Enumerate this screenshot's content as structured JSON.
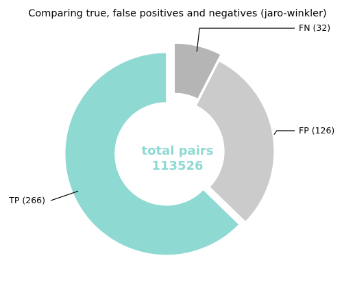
{
  "chart_data": {
    "type": "pie",
    "donut": true,
    "title": "Comparing true, false positives and negatives (jaro-winkler)",
    "center_label": {
      "line1": "total pairs",
      "line2": "113526",
      "color": "#8fd9d3"
    },
    "slices": [
      {
        "name": "FN",
        "value": 32,
        "label": "FN (32)",
        "color": "#b5b5b5",
        "exploded": true
      },
      {
        "name": "FP",
        "value": 126,
        "label": "FP (126)",
        "color": "#cbcbcb",
        "exploded": false
      },
      {
        "name": "TP",
        "value": 266,
        "label": "TP (266)",
        "color": "#8fd9d3",
        "exploded": true
      }
    ],
    "start_angle_deg": 90,
    "direction": "clockwise",
    "legend": "none",
    "grid": false
  }
}
